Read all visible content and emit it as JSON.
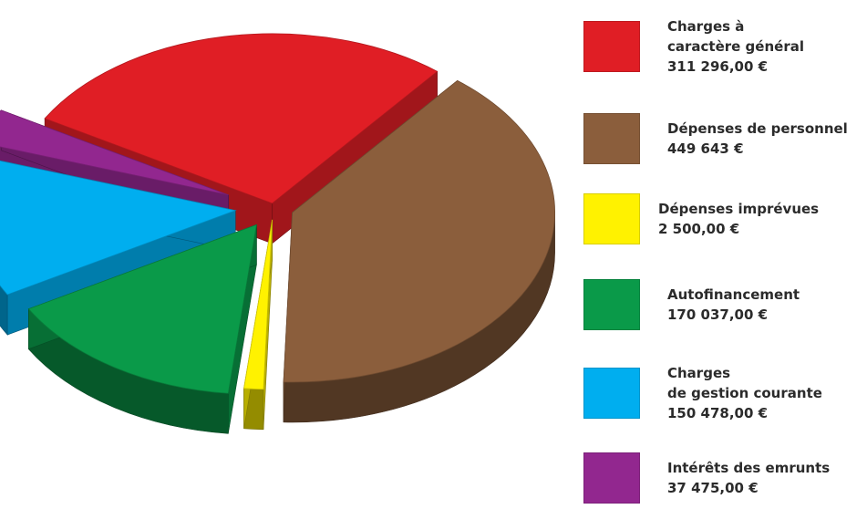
{
  "chart_data": {
    "type": "pie",
    "style": "3d-exploded",
    "legend_position": "right",
    "currency": "€",
    "slices": [
      {
        "label_lines": [
          "Charges à",
          "caractère général"
        ],
        "value_text": "311 296,00 €",
        "value": 311296.0,
        "color": "#e01e25"
      },
      {
        "label_lines": [
          "Dépenses de personnel"
        ],
        "value_text": "449 643 €",
        "value": 449643,
        "color": "#8b5e3c"
      },
      {
        "label_lines": [
          "Dépenses imprévues"
        ],
        "value_text": "2 500,00 €",
        "value": 2500.0,
        "color": "#fff200"
      },
      {
        "label_lines": [
          "Autofinancement"
        ],
        "value_text": "170 037,00 €",
        "value": 170037.0,
        "color": "#0a9a49"
      },
      {
        "label_lines": [
          "Charges",
          "de gestion courante"
        ],
        "value_text": "150 478,00 €",
        "value": 150478.0,
        "color": "#00aeef"
      },
      {
        "label_lines": [
          "Intérêts des emrunts"
        ],
        "value_text": "37 475,00 €",
        "value": 37475.0,
        "color": "#92278f"
      }
    ]
  }
}
